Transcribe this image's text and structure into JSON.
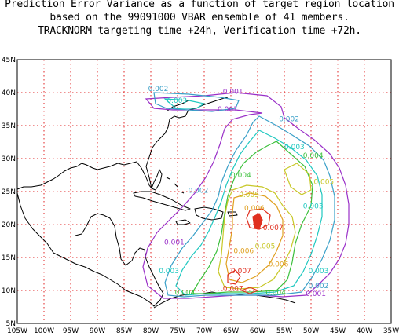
{
  "title": {
    "line1": "Prediction Error Variance as a function of target region location",
    "line2": "based on the 99091000 VBAR ensemble of 41 members.",
    "line3": "TRACKNORM targeting time +24h, Verification time +72h."
  },
  "map": {
    "lon_range": [
      -105,
      -35
    ],
    "lat_range": [
      5,
      45
    ],
    "x_tick_labels": [
      "105W",
      "100W",
      "95W",
      "90W",
      "85W",
      "80W",
      "75W",
      "70W",
      "65W",
      "60W",
      "55W",
      "50W",
      "45W",
      "40W",
      "35W"
    ],
    "y_tick_labels": [
      "5N",
      "10N",
      "15N",
      "20N",
      "25N",
      "30N",
      "35N",
      "40N",
      "45N"
    ],
    "gridline_color": "#e02020",
    "coastline_color": "#000000"
  },
  "contours": {
    "levels": [
      {
        "value": "0.001",
        "color": "#9a30c8"
      },
      {
        "value": "0.002",
        "color": "#3aa0c8"
      },
      {
        "value": "0.003",
        "color": "#20c8c0"
      },
      {
        "value": "0.004",
        "color": "#3cc03c"
      },
      {
        "value": "0.005",
        "color": "#c8c828"
      },
      {
        "value": "0.006",
        "color": "#e0a020"
      },
      {
        "value": "0.007",
        "color": "#e03020"
      }
    ],
    "labels": [
      {
        "text": "0.001",
        "lon": -66.5,
        "lat": 40.2,
        "color": "#9a30c8"
      },
      {
        "text": "0.001",
        "lon": -67.5,
        "lat": 37.5,
        "color": "#9a30c8"
      },
      {
        "text": "0.001",
        "lon": -77.5,
        "lat": 17.3,
        "color": "#9a30c8"
      },
      {
        "text": "0.001",
        "lon": -51.0,
        "lat": 9.5,
        "color": "#9a30c8"
      },
      {
        "text": "0.002",
        "lon": -80.5,
        "lat": 40.6,
        "color": "#3aa0c8"
      },
      {
        "text": "0.002",
        "lon": -56.0,
        "lat": 36.0,
        "color": "#3aa0c8"
      },
      {
        "text": "0.002",
        "lon": -73.0,
        "lat": 25.2,
        "color": "#3aa0c8"
      },
      {
        "text": "0.002",
        "lon": -50.5,
        "lat": 10.7,
        "color": "#3aa0c8"
      },
      {
        "text": "0.003",
        "lon": -77.0,
        "lat": 38.8,
        "color": "#20c8c0"
      },
      {
        "text": "0.003",
        "lon": -55.0,
        "lat": 31.8,
        "color": "#20c8c0"
      },
      {
        "text": "0.003",
        "lon": -51.5,
        "lat": 22.8,
        "color": "#20c8c0"
      },
      {
        "text": "0.003",
        "lon": -78.5,
        "lat": 13.0,
        "color": "#20c8c0"
      },
      {
        "text": "0.003",
        "lon": -50.5,
        "lat": 13.0,
        "color": "#20c8c0"
      },
      {
        "text": "0.004",
        "lon": -51.5,
        "lat": 30.5,
        "color": "#3cc03c"
      },
      {
        "text": "0.004",
        "lon": -65.0,
        "lat": 27.5,
        "color": "#3cc03c"
      },
      {
        "text": "0.004",
        "lon": -75.5,
        "lat": 9.7,
        "color": "#3cc03c"
      },
      {
        "text": "0.004",
        "lon": -58.5,
        "lat": 9.7,
        "color": "#3cc03c"
      },
      {
        "text": "0.005",
        "lon": -63.5,
        "lat": 24.5,
        "color": "#c8c828"
      },
      {
        "text": "0.005",
        "lon": -49.5,
        "lat": 26.5,
        "color": "#c8c828"
      },
      {
        "text": "0.005",
        "lon": -60.5,
        "lat": 16.7,
        "color": "#c8c828"
      },
      {
        "text": "0.006",
        "lon": -62.5,
        "lat": 22.5,
        "color": "#e0a020"
      },
      {
        "text": "0.006",
        "lon": -64.5,
        "lat": 16.0,
        "color": "#e0a020"
      },
      {
        "text": "0.006",
        "lon": -58.0,
        "lat": 14.0,
        "color": "#e0a020"
      },
      {
        "text": "0.007",
        "lon": -59.0,
        "lat": 19.5,
        "color": "#e03020"
      },
      {
        "text": "0.007",
        "lon": -65.0,
        "lat": 13.0,
        "color": "#e03020"
      },
      {
        "text": "0.007",
        "lon": -66.5,
        "lat": 10.3,
        "color": "#e03020"
      }
    ]
  }
}
